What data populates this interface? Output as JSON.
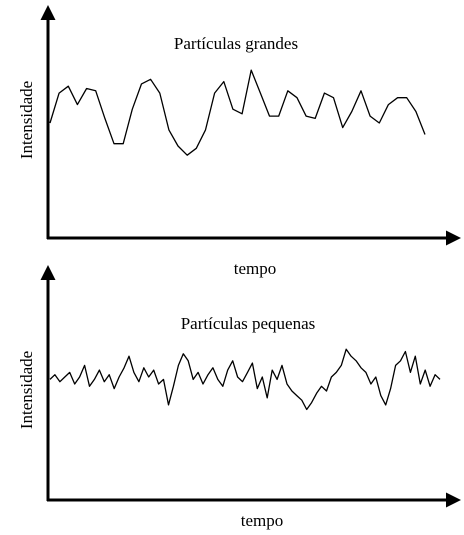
{
  "chart_data": [
    {
      "type": "line",
      "title": "Partículas grandes",
      "x_label": "tempo",
      "y_label": "Intensidade",
      "ylim": [
        0,
        100
      ],
      "color": "#000000",
      "values": [
        50,
        63,
        66,
        58,
        65,
        64,
        52,
        41,
        41,
        56,
        67,
        69,
        63,
        47,
        40,
        36,
        39,
        47,
        63,
        68,
        56,
        54,
        73,
        63,
        53,
        53,
        64,
        61,
        53,
        52,
        63,
        61,
        48,
        55,
        64,
        53,
        50,
        58,
        61,
        61,
        55,
        45
      ]
    },
    {
      "type": "line",
      "title": "Partículas pequenas",
      "x_label": "tempo",
      "y_label": "Intensidade",
      "ylim": [
        0,
        100
      ],
      "color": "#000000",
      "values": [
        52,
        54,
        51,
        53,
        55,
        50,
        53,
        58,
        49,
        52,
        56,
        51,
        54,
        48,
        53,
        57,
        62,
        55,
        51,
        57,
        53,
        56,
        50,
        52,
        41,
        49,
        58,
        63,
        60,
        52,
        55,
        50,
        54,
        57,
        52,
        49,
        56,
        60,
        53,
        51,
        55,
        59,
        48,
        53,
        44,
        56,
        52,
        58,
        50,
        47,
        45,
        43,
        39,
        42,
        46,
        49,
        47,
        53,
        55,
        58,
        65,
        62,
        60,
        57,
        55,
        50,
        53,
        45,
        41,
        48,
        58,
        60,
        64,
        55,
        62,
        50,
        56,
        49,
        54,
        52
      ]
    }
  ]
}
